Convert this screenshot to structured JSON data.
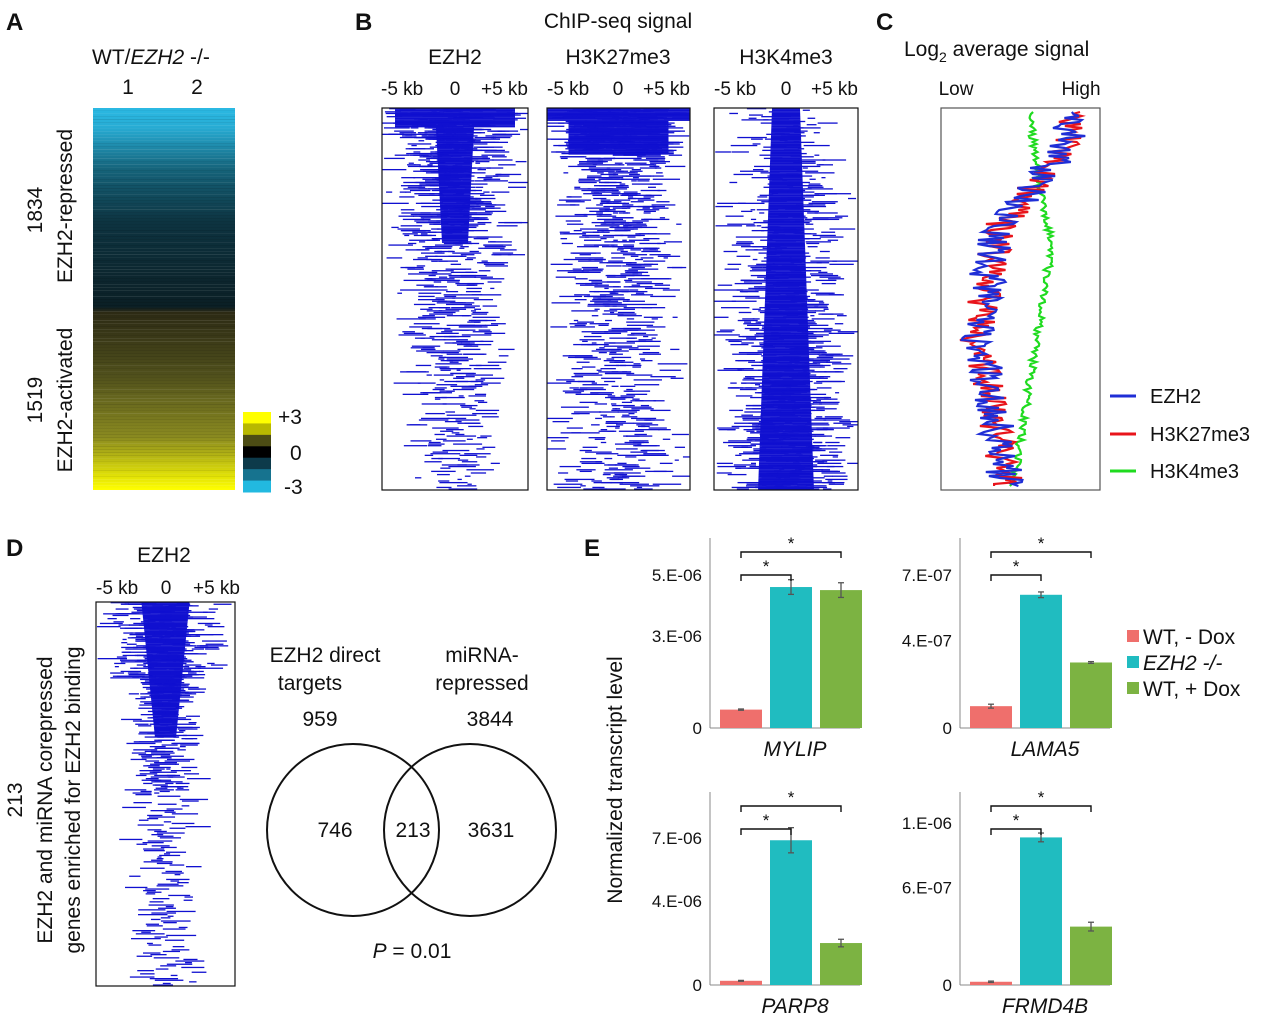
{
  "panel_labels": {
    "a": "A",
    "b": "B",
    "c": "C",
    "d": "D",
    "e": "E"
  },
  "panel_a": {
    "column_header_prefix": "WT/",
    "column_header_gene": "EZH2",
    "column_header_suffix": " -/-",
    "columns": [
      "1",
      "2"
    ],
    "group_repressed_count": "1834",
    "group_repressed_label": "EZH2-repressed",
    "group_activated_count": "1519",
    "group_activated_label": "EZH2-activated",
    "scale_ticks": [
      "+3",
      "0",
      "-3"
    ],
    "scale_colors": [
      "#ffff00",
      "#b8b800",
      "#4c4c14",
      "#000000",
      "#0d3a4a",
      "#16738f",
      "#22b9e0"
    ],
    "colors": {
      "cyan": "#2ab8e2",
      "yellow": "#f4f400"
    }
  },
  "panel_b": {
    "title": "ChIP-seq signal",
    "heatmaps": [
      {
        "name": "EZH2",
        "left_tick": "-5 kb",
        "mid_tick": "0",
        "right_tick": "+5 kb"
      },
      {
        "name": "H3K27me3",
        "left_tick": "-5 kb",
        "mid_tick": "0",
        "right_tick": "+5 kb"
      },
      {
        "name": "H3K4me3",
        "left_tick": "-5 kb",
        "mid_tick": "0",
        "right_tick": "+5 kb"
      }
    ],
    "signal_color": "#1010d0"
  },
  "panel_c": {
    "title_main": "Log",
    "title_sub": "2",
    "title_rest": " average signal",
    "axis_low": "Low",
    "axis_high": "High",
    "legend": [
      {
        "name": "EZH2",
        "color": "#1f2ed6"
      },
      {
        "name": "H3K27me3",
        "color": "#e8141b"
      },
      {
        "name": "H3K4me3",
        "color": "#1fdb1f"
      }
    ]
  },
  "panel_d": {
    "heatmap_title": "EZH2",
    "left_tick": "-5 kb",
    "mid_tick": "0",
    "right_tick": "+5 kb",
    "side_count": "213",
    "side_line1": "EZH2 and miRNA corepressed",
    "side_line2": "genes enriched for EZH2 binding",
    "venn": {
      "left_title_1": "EZH2 direct",
      "left_title_2": "targets",
      "right_title_1": "miRNA-",
      "right_title_2": "repressed",
      "left_total": "959",
      "right_total": "3844",
      "left_only": "746",
      "overlap": "213",
      "right_only": "3631",
      "p_label": "P",
      "p_value": " = 0.01"
    }
  },
  "panel_e": {
    "ylabel": "Normalized transcript level",
    "legend": [
      {
        "name": "WT, - Dox",
        "italic": false
      },
      {
        "name": "EZH2 -/-",
        "italic": true
      },
      {
        "name": "WT, + Dox",
        "italic": false
      }
    ],
    "significance_mark": "*"
  },
  "chart_data": [
    {
      "type": "bar",
      "title": "MYLIP",
      "categories": [
        "WT, - Dox",
        "EZH2 -/-",
        "WT, + Dox"
      ],
      "values": [
        6e-07,
        4.6e-06,
        4.5e-06
      ],
      "errors": [
        2e-08,
        2.4e-07,
        2.4e-07
      ],
      "colors": [
        "#ef6f6c",
        "#20bcc0",
        "#7cb342"
      ],
      "yticks": [
        0,
        3e-06,
        5e-06
      ],
      "ytick_labels": [
        "0",
        "3.E-06",
        "5.E-06"
      ],
      "ylim": [
        0,
        6.2e-06
      ]
    },
    {
      "type": "bar",
      "title": "LAMA5",
      "categories": [
        "WT, - Dox",
        "EZH2 -/-",
        "WT, + Dox"
      ],
      "values": [
        1e-07,
        6.1e-07,
        3e-07
      ],
      "errors": [
        9e-09,
        1.3e-08,
        4e-09
      ],
      "colors": [
        "#ef6f6c",
        "#20bcc0",
        "#7cb342"
      ],
      "yticks": [
        0,
        4e-07,
        7e-07
      ],
      "ytick_labels": [
        "0",
        "4.E-07",
        "7.E-07"
      ],
      "ylim": [
        0,
        8.7e-07
      ]
    },
    {
      "type": "bar",
      "title": "PARP8",
      "categories": [
        "WT, - Dox",
        "EZH2 -/-",
        "WT, + Dox"
      ],
      "values": [
        2e-07,
        6.9e-06,
        2e-06
      ],
      "errors": [
        2e-08,
        6e-07,
        1.8e-07
      ],
      "colors": [
        "#ef6f6c",
        "#20bcc0",
        "#7cb342"
      ],
      "yticks": [
        0,
        4e-06,
        7e-06
      ],
      "ytick_labels": [
        "0",
        "4.E-06",
        "7.E-06"
      ],
      "ylim": [
        0,
        9.2e-06
      ]
    },
    {
      "type": "bar",
      "title": "FRMD4B",
      "categories": [
        "WT, - Dox",
        "EZH2 -/-",
        "WT, + Dox"
      ],
      "values": [
        2e-08,
        9.1e-07,
        3.6e-07
      ],
      "errors": [
        4e-09,
        2.7e-08,
        2.7e-08
      ],
      "colors": [
        "#ef6f6c",
        "#20bcc0",
        "#7cb342"
      ],
      "yticks": [
        0,
        6e-07,
        1e-06
      ],
      "ytick_labels": [
        "0",
        "6.E-07",
        "1.E-06"
      ],
      "ylim": [
        0,
        1.19e-06
      ]
    }
  ]
}
